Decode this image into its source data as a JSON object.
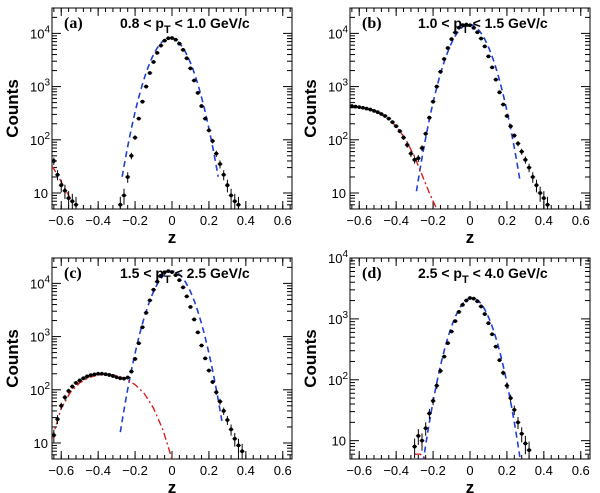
{
  "chart_data": [
    {
      "type": "scatter",
      "panel_tag": "(a)",
      "range_label": "0.8 < p_T < 1.0 GeV/c",
      "range_parts": [
        "0.8 < p",
        "T",
        " < 1.0 GeV/c"
      ],
      "xlabel": "z",
      "ylabel": "Counts",
      "xlim": [
        -0.65,
        0.65
      ],
      "ylim": [
        5,
        30000
      ],
      "yscale": "log",
      "x_ticks": [
        "−0.6",
        "−0.4",
        "−0.2",
        "0",
        "0.2",
        "0.4",
        "0.6"
      ],
      "y_ticks": [
        "10",
        "10^2",
        "10^3",
        "10^4"
      ],
      "series": [
        {
          "role": "data",
          "color": "#000000",
          "x": [
            -0.64,
            -0.62,
            -0.6,
            -0.58,
            -0.56,
            -0.54,
            -0.52,
            -0.28,
            -0.26,
            -0.24,
            -0.22,
            -0.2,
            -0.18,
            -0.16,
            -0.14,
            -0.12,
            -0.1,
            -0.08,
            -0.06,
            -0.04,
            -0.02,
            0.0,
            0.02,
            0.04,
            0.06,
            0.08,
            0.1,
            0.12,
            0.14,
            0.16,
            0.18,
            0.2,
            0.22,
            0.24,
            0.26,
            0.28,
            0.3,
            0.32,
            0.34,
            0.36
          ],
          "y": [
            40,
            22,
            14,
            11,
            8,
            7,
            6,
            6,
            9,
            20,
            50,
            110,
            250,
            520,
            1000,
            1800,
            2900,
            4300,
            5900,
            7300,
            8100,
            8200,
            7600,
            6400,
            4900,
            3400,
            2200,
            1300,
            760,
            430,
            250,
            150,
            95,
            55,
            35,
            22,
            14,
            9,
            7,
            6
          ]
        },
        {
          "role": "fit_signal",
          "color": "#1f3fd6",
          "dash": "dashed",
          "amp": 8200,
          "mu": -0.01,
          "sigma": 0.075,
          "xmin": -0.27,
          "xmax": 0.25
        },
        {
          "role": "fit_background",
          "color": "#d62020",
          "dash": "dashdot",
          "xmin": -0.65,
          "xmax": -0.52,
          "x": [
            -0.65,
            -0.62,
            -0.59,
            -0.56,
            -0.53
          ],
          "y": [
            32,
            22,
            14,
            9,
            6
          ]
        }
      ]
    },
    {
      "type": "scatter",
      "panel_tag": "(b)",
      "range_label": "1.0 < p_T < 1.5 GeV/c",
      "range_parts": [
        "1.0 < p",
        "T",
        " < 1.5 GeV/c"
      ],
      "xlabel": "z",
      "ylabel": "Counts",
      "xlim": [
        -0.65,
        0.65
      ],
      "ylim": [
        5,
        30000
      ],
      "yscale": "log",
      "x_ticks": [
        "−0.6",
        "−0.4",
        "−0.2",
        "0",
        "0.2",
        "0.4",
        "0.6"
      ],
      "y_ticks": [
        "10",
        "10^2",
        "10^3",
        "10^4"
      ],
      "series": [
        {
          "role": "data",
          "color": "#000000",
          "x": [
            -0.64,
            -0.62,
            -0.6,
            -0.58,
            -0.56,
            -0.54,
            -0.52,
            -0.5,
            -0.48,
            -0.46,
            -0.44,
            -0.42,
            -0.4,
            -0.38,
            -0.36,
            -0.34,
            -0.32,
            -0.3,
            -0.28,
            -0.26,
            -0.24,
            -0.22,
            -0.2,
            -0.18,
            -0.16,
            -0.14,
            -0.12,
            -0.1,
            -0.08,
            -0.06,
            -0.04,
            -0.02,
            0.0,
            0.02,
            0.04,
            0.06,
            0.08,
            0.1,
            0.12,
            0.14,
            0.16,
            0.18,
            0.2,
            0.22,
            0.24,
            0.26,
            0.28,
            0.3,
            0.32,
            0.34,
            0.36,
            0.38,
            0.4,
            0.42
          ],
          "y": [
            430,
            420,
            410,
            400,
            385,
            370,
            350,
            330,
            305,
            280,
            250,
            215,
            180,
            145,
            110,
            80,
            55,
            42,
            45,
            70,
            130,
            260,
            520,
            1000,
            1900,
            3300,
            5300,
            7800,
            10400,
            12800,
            14300,
            14700,
            14200,
            12700,
            10500,
            8000,
            5700,
            3700,
            2300,
            1350,
            780,
            460,
            280,
            180,
            120,
            85,
            60,
            42,
            30,
            20,
            14,
            10,
            8,
            6
          ]
        },
        {
          "role": "fit_signal",
          "color": "#1f3fd6",
          "dash": "dashed",
          "amp": 14700,
          "mu": -0.005,
          "sigma": 0.075,
          "xmin": -0.29,
          "xmax": 0.27
        },
        {
          "role": "fit_background",
          "color": "#d62020",
          "dash": "dashdot",
          "xmin": -0.65,
          "xmax": -0.18,
          "x": [
            -0.65,
            -0.6,
            -0.55,
            -0.5,
            -0.45,
            -0.4,
            -0.35,
            -0.3,
            -0.26,
            -0.22,
            -0.18
          ],
          "y": [
            420,
            400,
            375,
            330,
            260,
            180,
            105,
            48,
            22,
            10,
            5
          ]
        }
      ]
    },
    {
      "type": "scatter",
      "panel_tag": "(c)",
      "range_label": "1.5 < p_T < 2.5 GeV/c",
      "range_parts": [
        "1.5 < p",
        "T",
        " < 2.5 GeV/c"
      ],
      "xlabel": "z",
      "ylabel": "Counts",
      "xlim": [
        -0.65,
        0.65
      ],
      "ylim": [
        5,
        30000
      ],
      "yscale": "log",
      "x_ticks": [
        "−0.6",
        "−0.4",
        "−0.2",
        "0",
        "0.2",
        "0.4",
        "0.6"
      ],
      "y_ticks": [
        "10",
        "10^2",
        "10^3",
        "10^4"
      ],
      "series": [
        {
          "role": "data",
          "color": "#000000",
          "x": [
            -0.64,
            -0.62,
            -0.6,
            -0.58,
            -0.56,
            -0.54,
            -0.52,
            -0.5,
            -0.48,
            -0.46,
            -0.44,
            -0.42,
            -0.4,
            -0.38,
            -0.36,
            -0.34,
            -0.32,
            -0.3,
            -0.28,
            -0.26,
            -0.24,
            -0.22,
            -0.2,
            -0.18,
            -0.16,
            -0.14,
            -0.12,
            -0.1,
            -0.08,
            -0.06,
            -0.04,
            -0.02,
            0.0,
            0.02,
            0.04,
            0.06,
            0.08,
            0.1,
            0.12,
            0.14,
            0.16,
            0.18,
            0.2,
            0.22,
            0.24,
            0.26,
            0.28,
            0.3,
            0.32,
            0.34,
            0.36,
            0.38
          ],
          "y": [
            14,
            28,
            50,
            72,
            95,
            115,
            135,
            150,
            165,
            178,
            188,
            195,
            200,
            200,
            196,
            190,
            182,
            172,
            165,
            162,
            170,
            220,
            380,
            750,
            1500,
            2800,
            4800,
            7600,
            10800,
            14000,
            16200,
            17000,
            16300,
            14300,
            11500,
            8400,
            5700,
            3600,
            2100,
            1200,
            680,
            390,
            230,
            140,
            90,
            60,
            40,
            27,
            18,
            12,
            9,
            7
          ]
        },
        {
          "role": "fit_signal",
          "color": "#1f3fd6",
          "dash": "dashed",
          "amp": 17000,
          "mu": 0.0,
          "sigma": 0.075,
          "xmin": -0.28,
          "xmax": 0.27
        },
        {
          "role": "fit_background",
          "color": "#d62020",
          "dash": "dashdot",
          "xmin": -0.65,
          "xmax": 0.0,
          "x": [
            -0.65,
            -0.6,
            -0.55,
            -0.5,
            -0.45,
            -0.4,
            -0.35,
            -0.3,
            -0.25,
            -0.2,
            -0.15,
            -0.1,
            -0.05,
            0.0
          ],
          "y": [
            12,
            45,
            90,
            135,
            170,
            190,
            195,
            185,
            160,
            125,
            85,
            45,
            18,
            5
          ]
        }
      ]
    },
    {
      "type": "scatter",
      "panel_tag": "(d)",
      "range_label": "2.5 < p_T < 4.0 GeV/c",
      "range_parts": [
        "2.5 < p",
        "T",
        " < 4.0 GeV/c"
      ],
      "xlabel": "z",
      "ylabel": "Counts",
      "xlim": [
        -0.65,
        0.65
      ],
      "ylim": [
        5,
        10000
      ],
      "yscale": "log",
      "x_ticks": [
        "−0.6",
        "−0.4",
        "−0.2",
        "0",
        "0.2",
        "0.4",
        "0.6"
      ],
      "y_ticks": [
        "10",
        "10^2",
        "10^3",
        "10^4"
      ],
      "series": [
        {
          "role": "data",
          "color": "#000000",
          "x": [
            -0.3,
            -0.28,
            -0.26,
            -0.24,
            -0.22,
            -0.2,
            -0.18,
            -0.16,
            -0.14,
            -0.12,
            -0.1,
            -0.08,
            -0.06,
            -0.04,
            -0.02,
            0.0,
            0.02,
            0.04,
            0.06,
            0.08,
            0.1,
            0.12,
            0.14,
            0.16,
            0.18,
            0.2,
            0.22,
            0.24,
            0.26,
            0.28,
            0.3,
            0.32
          ],
          "y": [
            8,
            12,
            10,
            16,
            28,
            45,
            80,
            140,
            240,
            400,
            620,
            920,
            1300,
            1700,
            2000,
            2200,
            2150,
            1950,
            1600,
            1200,
            850,
            560,
            350,
            210,
            130,
            80,
            50,
            32,
            20,
            13,
            9,
            7
          ]
        },
        {
          "role": "fit_signal",
          "color": "#1f3fd6",
          "dash": "dashed",
          "amp": 2200,
          "mu": 0.01,
          "sigma": 0.075,
          "xmin": -0.27,
          "xmax": 0.27
        },
        {
          "role": "fit_background",
          "color": "#d62020",
          "dash": "dashdot",
          "xmin": -0.3,
          "xmax": -0.24,
          "x": [
            -0.3,
            -0.27,
            -0.24
          ],
          "y": [
            6,
            6,
            5
          ]
        }
      ]
    }
  ]
}
